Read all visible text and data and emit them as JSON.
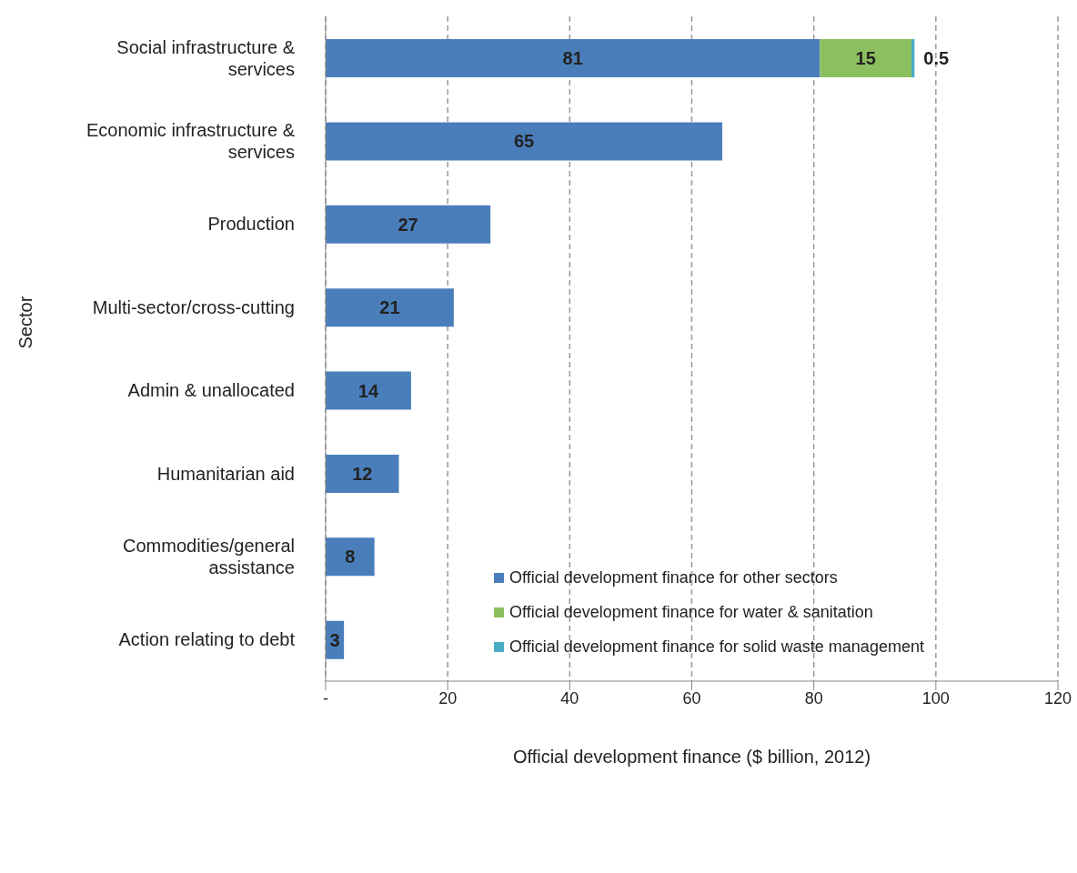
{
  "chart_data": {
    "type": "bar",
    "orientation": "horizontal",
    "stacked": true,
    "xlabel": "Official development finance ($ billion, 2012)",
    "ylabel": "Sector",
    "categories": [
      "Social infrastructure & services",
      "Economic infrastructure & services",
      "Production",
      "Multi-sector/cross-cutting",
      "Admin & unallocated",
      "Humanitarian aid",
      "Commodities/general assistance",
      "Action relating to debt"
    ],
    "series": [
      {
        "name": "Official development finance for other sectors",
        "color": "#4a7ebb",
        "values": [
          81,
          65,
          27,
          21,
          14,
          12,
          8,
          3
        ],
        "value_labels": [
          "81",
          "65",
          "27",
          "21",
          "14",
          "12",
          "8",
          "3"
        ]
      },
      {
        "name": "Official development finance for water & sanitation",
        "color": "#8cbf5f",
        "values": [
          15,
          null,
          null,
          null,
          null,
          null,
          null,
          null
        ],
        "value_labels": [
          "15",
          null,
          null,
          null,
          null,
          null,
          null,
          null
        ]
      },
      {
        "name": "Official development finance for solid waste management",
        "color": "#4bacc6",
        "values": [
          0.5,
          null,
          null,
          null,
          null,
          null,
          null,
          null
        ],
        "value_labels": [
          "0.5",
          null,
          null,
          null,
          null,
          null,
          null,
          null
        ]
      }
    ],
    "xlim": [
      0,
      120
    ],
    "xticks": [
      {
        "value": 0,
        "label": "-"
      },
      20,
      40,
      60,
      80,
      100,
      120
    ],
    "grid": "x",
    "legend": "bottom right"
  }
}
